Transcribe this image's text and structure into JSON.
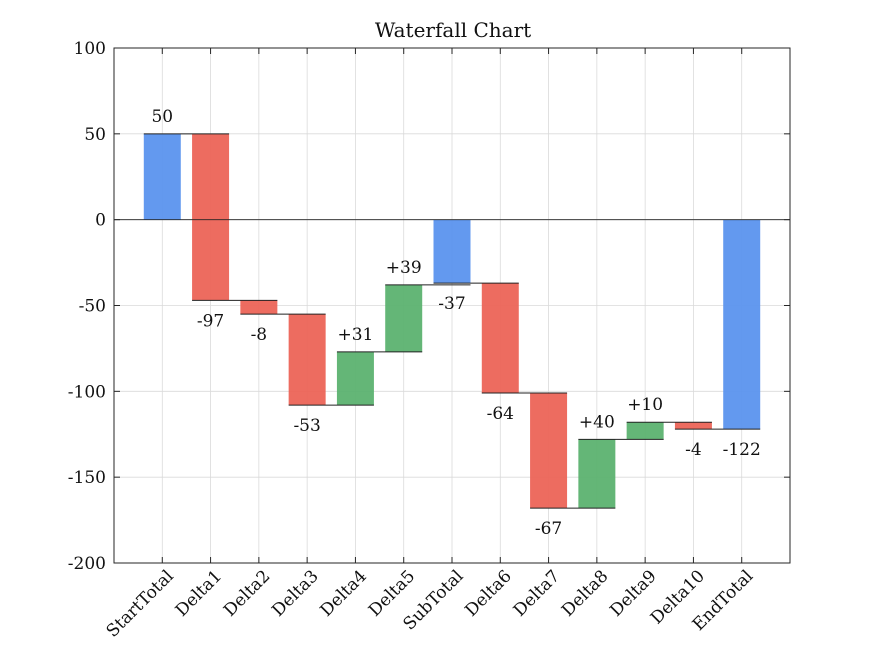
{
  "chart_data": {
    "type": "waterfall",
    "title": "Waterfall Chart",
    "xlabel": "",
    "ylabel": "",
    "ylim": [
      -200,
      100
    ],
    "yticks": [
      100,
      50,
      0,
      -50,
      -100,
      -150,
      -200
    ],
    "ytick_labels": [
      "100",
      "50",
      "0",
      "-50",
      "-100",
      "-150",
      "-200"
    ],
    "grid": true,
    "categories": [
      "StartTotal",
      "Delta1",
      "Delta2",
      "Delta3",
      "Delta4",
      "Delta5",
      "SubTotal",
      "Delta6",
      "Delta7",
      "Delta8",
      "Delta9",
      "Delta10",
      "EndTotal"
    ],
    "values": [
      50,
      -97,
      -8,
      -53,
      31,
      39,
      -37,
      -64,
      -67,
      40,
      10,
      -4,
      -122
    ],
    "kinds": [
      "total",
      "delta",
      "delta",
      "delta",
      "delta",
      "delta",
      "total",
      "delta",
      "delta",
      "delta",
      "delta",
      "delta",
      "total"
    ],
    "value_labels": [
      "50",
      "-97",
      "-8",
      "-53",
      "+31",
      "+39",
      "-37",
      "-64",
      "-67",
      "+40",
      "+10",
      "-4",
      "-122"
    ],
    "colors": {
      "total": "#5b94ee",
      "increase": "#5cb270",
      "decrease": "#ec6457"
    }
  }
}
